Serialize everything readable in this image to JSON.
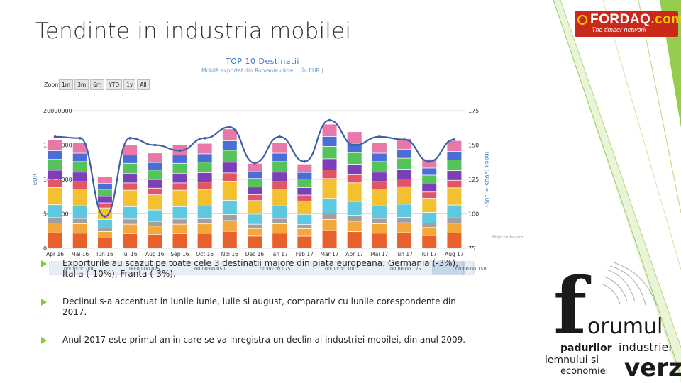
{
  "slide": {
    "title": "Tendinte in industria mobilei"
  },
  "logos": {
    "fordaq_brand": "FORDAQ",
    "fordaq_tld": ".com",
    "fordaq_tagline": "The timber network",
    "forum_line1": "orumul",
    "forum_line2a": "padurilor",
    "forum_line2b": "industriei",
    "forum_line3": "lemnului si",
    "forum_line4": "economiei",
    "forum_line5": "verzi",
    "forum_big_letter": "f"
  },
  "chart": {
    "credit": "Highcharts.com",
    "zoom_label": "Zoom",
    "zoom_buttons": [
      "1m",
      "3m",
      "6m",
      "YTD",
      "1y",
      "All"
    ],
    "navigator_labels": [
      "00:00:00.000",
      "00:00:00.025",
      "00:00:00.050",
      "00:00:00.075",
      "00:00:00.100",
      "00:00:00.125",
      "00:00:00.150"
    ]
  },
  "chart_data": {
    "type": "bar",
    "title": "TOP 10 Destinatii",
    "subtitle": "Mobilă exportat din Romania către... (în EUR )",
    "ylabel": "EUR",
    "y2label": "Index (2005 = 100)",
    "ylim": [
      0,
      20000000
    ],
    "y2lim": [
      75,
      175
    ],
    "y_ticks": [
      "0",
      "5000000",
      "10000000",
      "15000000",
      "20000000"
    ],
    "y2_ticks": [
      "75",
      "100",
      "125",
      "150",
      "175"
    ],
    "categories": [
      "Apr 16",
      "Mai 16",
      "Iun 16",
      "Iul 16",
      "Aug 16",
      "Sep 16",
      "Oct 16",
      "Noi 16",
      "Dec 16",
      "Ian 17",
      "Feb 17",
      "Mar 17",
      "Apr 17",
      "Mai 17",
      "Iun 17",
      "Iul 17",
      "Aug 17"
    ],
    "x_tick_labels": [
      "Apr 16",
      "Mai 16",
      "Iun 16",
      "Iul 16",
      "Aug 16",
      "Sep 16",
      "Oct 16",
      "Noi 16",
      "Dec 16",
      "Ian 17",
      "Feb 17",
      "Mar 17",
      "Apr 17",
      "Mai 17",
      "Iun 17",
      "Iul 17",
      "Aug 17"
    ],
    "stack_colors": [
      "#e8612c",
      "#f3a83b",
      "#a0a0a0",
      "#5ec8e0",
      "#f3c12f",
      "#e25565",
      "#7b3fb8",
      "#55c25a",
      "#4a6dd8",
      "#e878a8"
    ],
    "totals": [
      15700000,
      15300000,
      10400000,
      15000000,
      13800000,
      15000000,
      15200000,
      17300000,
      12300000,
      15300000,
      12200000,
      18000000,
      16900000,
      15300000,
      15900000,
      12900000,
      15600000
    ],
    "index_series": {
      "name": "Index (2005 = 100)",
      "color": "#3b5fa8",
      "values": [
        156,
        155,
        98,
        155,
        150,
        146,
        155,
        163,
        137,
        156,
        138,
        168,
        150,
        156,
        154,
        138,
        154
      ]
    },
    "grid": true
  },
  "bullets": [
    "Exporturile au scazut pe toate cele 3 destinatii majore din piata europeana: Germania (-3%), Italia (-10%), Franta (-3%).",
    "Declinul s-a accentuat  in lunile iunie, iulie si august,  comparativ cu lunile corespondente din 2017.",
    "Anul 2017  este primul an in care se va inregistra un declin al industriei mobilei, din anul 2009."
  ],
  "colors": {
    "accent_green": "#8cc83c",
    "fordaq_red": "#c9281b",
    "title_text": "#303030",
    "chart_title": "#3a7ab8"
  }
}
